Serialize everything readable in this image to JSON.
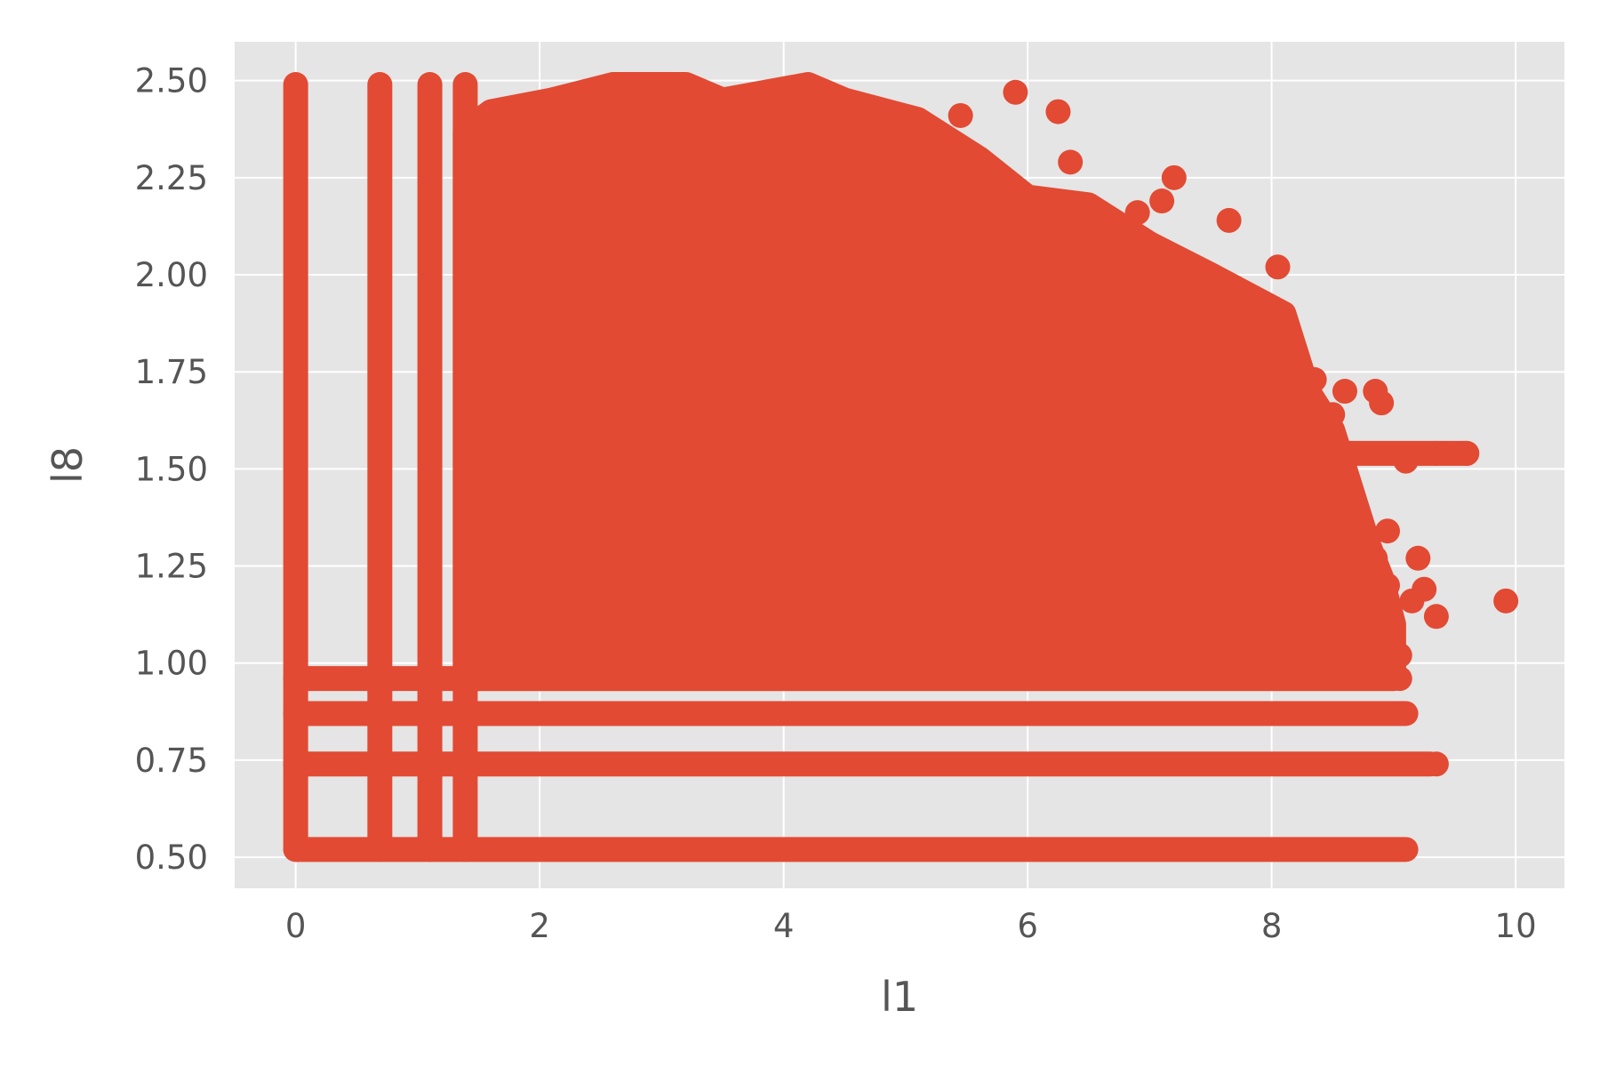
{
  "chart_data": {
    "type": "scatter",
    "title": "",
    "xlabel": "l1",
    "ylabel": "l8",
    "xlim": [
      -0.5,
      10.4
    ],
    "ylim": [
      0.42,
      2.6
    ],
    "xticks": [
      0,
      2,
      4,
      6,
      8,
      10
    ],
    "yticks": [
      0.5,
      0.75,
      1.0,
      1.25,
      1.5,
      1.75,
      2.0,
      2.25,
      2.5
    ],
    "xtick_labels": [
      "0",
      "2",
      "4",
      "6",
      "8",
      "10"
    ],
    "ytick_labels": [
      "0.50",
      "0.75",
      "1.00",
      "1.25",
      "1.50",
      "1.75",
      "2.00",
      "2.25",
      "2.50"
    ],
    "grid": true,
    "legend": "none",
    "colors": {
      "marker": "#E24A33",
      "panel": "#E5E5E5",
      "grid": "#FFFFFF",
      "text": "#555555"
    },
    "columns": [
      {
        "x": 0.0,
        "y_min": 0.52,
        "y_max": 2.49
      },
      {
        "x": 0.69,
        "y_min": 0.52,
        "y_max": 2.49
      },
      {
        "x": 1.1,
        "y_min": 0.52,
        "y_max": 2.49
      },
      {
        "x": 1.39,
        "y_min": 0.52,
        "y_max": 2.49
      }
    ],
    "discrete_y_rows": [
      {
        "y": 0.52,
        "x_min": 0.0,
        "x_max": 9.1
      },
      {
        "y": 0.74,
        "x_min": 0.0,
        "x_max": 9.3
      },
      {
        "y": 0.87,
        "x_min": 0.0,
        "x_max": 9.1
      },
      {
        "y": 0.96,
        "x_min": 0.0,
        "x_max": 9.0
      },
      {
        "y": 1.54,
        "x_min": 7.5,
        "x_max": 9.6
      }
    ],
    "dense_region": [
      [
        1.39,
        0.96
      ],
      [
        1.39,
        2.37
      ],
      [
        1.6,
        2.42
      ],
      [
        2.1,
        2.45
      ],
      [
        2.6,
        2.49
      ],
      [
        3.2,
        2.49
      ],
      [
        3.5,
        2.45
      ],
      [
        4.2,
        2.49
      ],
      [
        4.5,
        2.45
      ],
      [
        5.1,
        2.4
      ],
      [
        5.6,
        2.3
      ],
      [
        6.0,
        2.2
      ],
      [
        6.5,
        2.18
      ],
      [
        7.0,
        2.08
      ],
      [
        7.5,
        2.0
      ],
      [
        8.1,
        1.9
      ],
      [
        8.2,
        1.8
      ],
      [
        8.3,
        1.7
      ],
      [
        8.5,
        1.6
      ],
      [
        8.6,
        1.5
      ],
      [
        8.7,
        1.4
      ],
      [
        8.8,
        1.3
      ],
      [
        8.9,
        1.22
      ],
      [
        9.0,
        1.1
      ],
      [
        9.0,
        0.96
      ]
    ],
    "outliers": [
      [
        5.9,
        2.47
      ],
      [
        6.25,
        2.42
      ],
      [
        5.45,
        2.41
      ],
      [
        6.35,
        2.29
      ],
      [
        7.2,
        2.25
      ],
      [
        7.1,
        2.19
      ],
      [
        6.9,
        2.16
      ],
      [
        7.65,
        2.14
      ],
      [
        6.6,
        2.16
      ],
      [
        8.05,
        2.02
      ],
      [
        8.35,
        1.73
      ],
      [
        8.6,
        1.7
      ],
      [
        8.85,
        1.7
      ],
      [
        8.9,
        1.67
      ],
      [
        8.5,
        1.64
      ],
      [
        9.35,
        1.54
      ],
      [
        9.6,
        1.54
      ],
      [
        9.1,
        1.52
      ],
      [
        8.95,
        1.34
      ],
      [
        9.2,
        1.27
      ],
      [
        8.85,
        1.27
      ],
      [
        8.95,
        1.2
      ],
      [
        9.25,
        1.19
      ],
      [
        9.15,
        1.16
      ],
      [
        9.35,
        1.12
      ],
      [
        9.92,
        1.16
      ],
      [
        8.8,
        1.08
      ],
      [
        9.05,
        1.02
      ],
      [
        8.7,
        1.03
      ],
      [
        9.05,
        0.96
      ],
      [
        9.35,
        0.74
      ],
      [
        9.05,
        0.87
      ],
      [
        8.65,
        1.12
      ]
    ]
  }
}
